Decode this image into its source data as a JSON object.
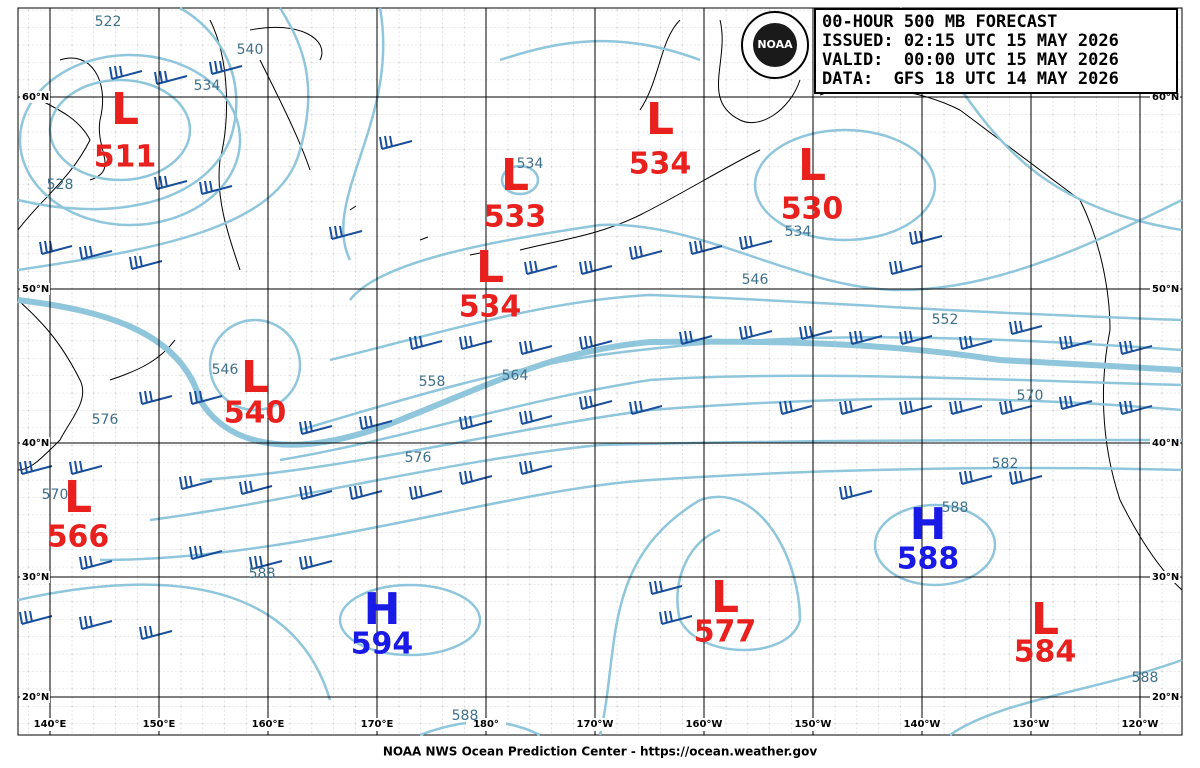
{
  "header": {
    "lines": [
      "00-HOUR 500 MB FORECAST",
      "ISSUED: 02:15 UTC 15 MAY 2026",
      "VALID:  00:00 UTC 15 MAY 2026",
      "DATA:  GFS 18 UTC 14 MAY 2026"
    ]
  },
  "logo": "NOAA",
  "latitudes": [
    "60°N",
    "50°N",
    "40°N",
    "30°N",
    "20°N"
  ],
  "longitudes": [
    "140°E",
    "150°E",
    "160°E",
    "170°E",
    "180°",
    "170°W",
    "160°W",
    "150°W",
    "140°W",
    "130°W",
    "120°W"
  ],
  "centers": [
    {
      "symbol": "L",
      "value": "511"
    },
    {
      "symbol": "L",
      "value": "533"
    },
    {
      "symbol": "L",
      "value": "534"
    },
    {
      "symbol": "L",
      "value": "534"
    },
    {
      "symbol": "L",
      "value": "530"
    },
    {
      "symbol": "L",
      "value": "540"
    },
    {
      "symbol": "L",
      "value": "566"
    },
    {
      "symbol": "H",
      "value": "594"
    },
    {
      "symbol": "L",
      "value": "577"
    },
    {
      "symbol": "H",
      "value": "588"
    },
    {
      "symbol": "L",
      "value": "584"
    }
  ],
  "contour_labels": [
    "522",
    "540",
    "534",
    "528",
    "534",
    "534",
    "546",
    "552",
    "558",
    "564",
    "570",
    "576",
    "582",
    "588",
    "546",
    "576",
    "570",
    "588",
    "588",
    "588"
  ],
  "footer": "NOAA NWS Ocean Prediction Center - https://ocean.weather.gov"
}
